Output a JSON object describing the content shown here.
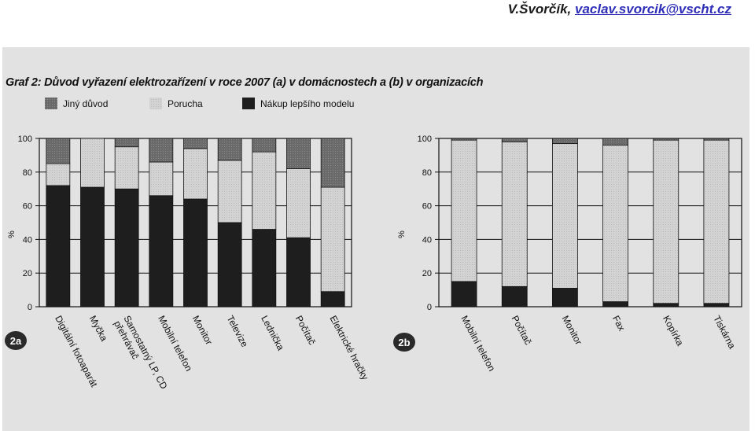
{
  "author": {
    "name": "V.Švorčík,",
    "email": "vaclav.svorcik@vscht.cz"
  },
  "graph_title": "Graf 2: Důvod vyřazení elektrozařízení v roce 2007 (a) v domácnostech a (b) v organizacích",
  "colors": {
    "other": "#6a6a6a",
    "fault": "#cfcfcf",
    "newer": "#1e1e1e",
    "badge": "#2a2a2a"
  },
  "chart_data": [
    {
      "type": "bar",
      "stacked": true,
      "badge": "2a",
      "ylabel": "%",
      "ylim": [
        0,
        100
      ],
      "yticks": [
        0,
        20,
        40,
        60,
        80,
        100
      ],
      "grid": true,
      "legend_position": "top",
      "categories": [
        "Digitální fotoaparát",
        "Myčka",
        "Samostatný LP, CD přehrávač",
        "Mobilní telefon",
        "Monitor",
        "Televize",
        "Lednička",
        "Počítač",
        "Elektrické hračky"
      ],
      "series": [
        {
          "name": "Nákup lepšího modelu",
          "values": [
            72,
            71,
            70,
            66,
            64,
            50,
            46,
            41,
            9
          ]
        },
        {
          "name": "Porucha",
          "values": [
            13,
            29,
            25,
            20,
            30,
            37,
            46,
            41,
            62
          ]
        },
        {
          "name": "Jiný důvod",
          "values": [
            15,
            0,
            5,
            14,
            6,
            13,
            8,
            18,
            29
          ]
        }
      ]
    },
    {
      "type": "bar",
      "stacked": true,
      "badge": "2b",
      "ylabel": "%",
      "ylim": [
        0,
        100
      ],
      "yticks": [
        0,
        20,
        40,
        60,
        80,
        100
      ],
      "grid": true,
      "categories": [
        "Mobilní telefon",
        "Počítač",
        "Monitor",
        "Fax",
        "Kopírka",
        "Tiskárna"
      ],
      "series": [
        {
          "name": "Nákup lepšího modelu",
          "values": [
            15,
            12,
            11,
            3,
            2,
            2
          ]
        },
        {
          "name": "Porucha",
          "values": [
            84,
            86,
            86,
            93,
            97,
            97
          ]
        },
        {
          "name": "Jiný důvod",
          "values": [
            1,
            2,
            3,
            4,
            1,
            1
          ]
        }
      ]
    }
  ]
}
